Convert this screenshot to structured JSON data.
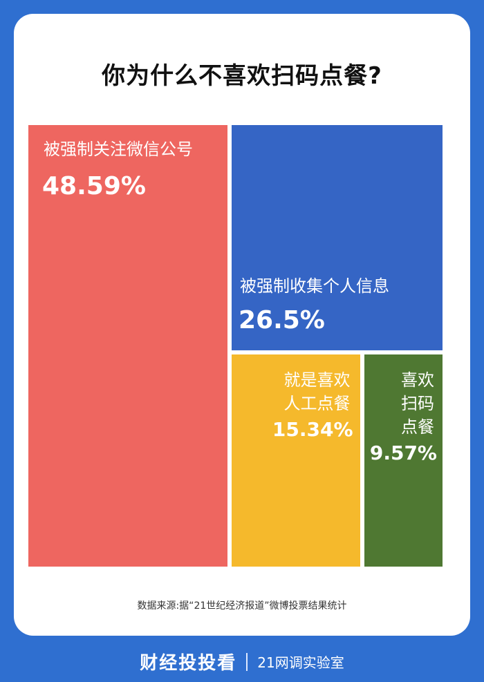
{
  "header": {
    "title": "你为什么不喜欢扫码点餐?"
  },
  "colors": {
    "background": "#2f6fd0",
    "red": "#ee6660",
    "blue": "#3565c5",
    "yellow": "#f5b92c",
    "green": "#4f7832"
  },
  "chart_data": {
    "type": "treemap",
    "title": "你为什么不喜欢扫码点餐?",
    "unit": "%",
    "items": [
      {
        "name": "被强制关注微信公号",
        "label_lines": [
          "被强制关注微信公号"
        ],
        "value": 48.59,
        "value_label": "48.59%",
        "color": "#ee6660"
      },
      {
        "name": "被强制收集个人信息",
        "label_lines": [
          "被强制收集个人信息"
        ],
        "value": 26.5,
        "value_label": "26.5%",
        "color": "#3565c5"
      },
      {
        "name": "就是喜欢人工点餐",
        "label_lines": [
          "就是喜欢",
          "人工点餐"
        ],
        "value": 15.34,
        "value_label": "15.34%",
        "color": "#f5b92c"
      },
      {
        "name": "喜欢扫码点餐",
        "label_lines": [
          "喜欢",
          "扫码",
          "点餐"
        ],
        "value": 9.57,
        "value_label": "9.57%",
        "color": "#4f7832"
      }
    ],
    "legend": false
  },
  "source": "数据来源:据“21世纪经济报道”微博投票结果统计",
  "footer": {
    "logo": "财经投投看",
    "sub": "21网调实验室"
  }
}
